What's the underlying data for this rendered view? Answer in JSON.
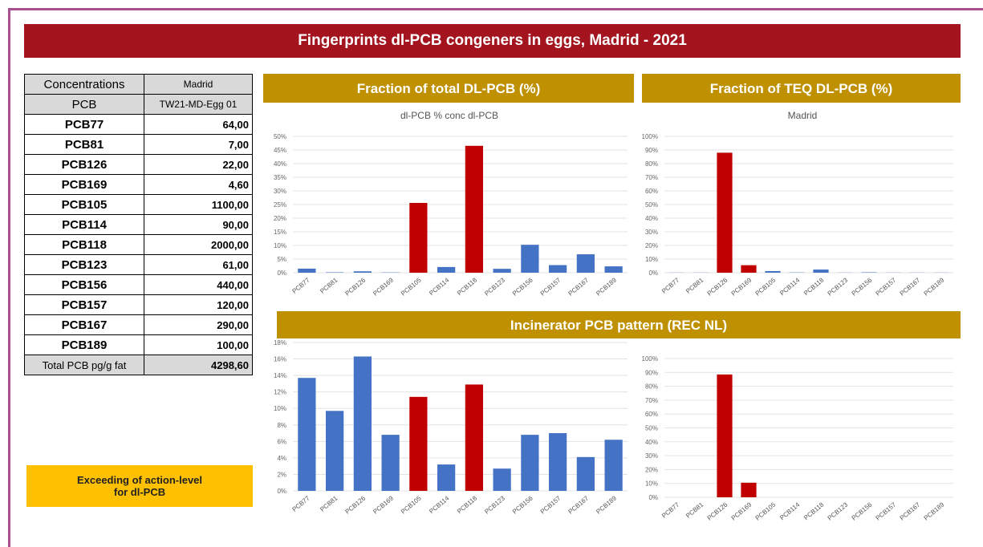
{
  "title": "Fingerprints dl-PCB congeners in eggs, Madrid - 2021",
  "table": {
    "header": [
      [
        "Concentrations",
        "Madrid"
      ],
      [
        "PCB",
        "TW21-MD-Egg 01"
      ]
    ],
    "rows": [
      [
        "PCB77",
        "64,00"
      ],
      [
        "PCB81",
        "7,00"
      ],
      [
        "PCB126",
        "22,00"
      ],
      [
        "PCB169",
        "4,60"
      ],
      [
        "PCB105",
        "1100,00"
      ],
      [
        "PCB114",
        "90,00"
      ],
      [
        "PCB118",
        "2000,00"
      ],
      [
        "PCB123",
        "61,00"
      ],
      [
        "PCB156",
        "440,00"
      ],
      [
        "PCB157",
        "120,00"
      ],
      [
        "PCB167",
        "290,00"
      ],
      [
        "PCB189",
        "100,00"
      ]
    ],
    "footer": [
      "Total PCB pg/g fat",
      "4298,60"
    ]
  },
  "note": "Exceeding of action-level for dl-PCB",
  "chart_data": [
    {
      "type": "bar",
      "title": "Fraction of total DL-PCB (%)",
      "subtitle": "dl-PCB % conc dl-PCB",
      "categories": [
        "PCB77",
        "PCB81",
        "PCB126",
        "PCB169",
        "PCB105",
        "PCB114",
        "PCB118",
        "PCB123",
        "PCB156",
        "PCB157",
        "PCB167",
        "PCB189"
      ],
      "values": [
        1.49,
        0.16,
        0.51,
        0.11,
        25.59,
        2.09,
        46.53,
        1.42,
        10.24,
        2.79,
        6.75,
        2.33
      ],
      "colors": [
        "#4472c4",
        "#4472c4",
        "#4472c4",
        "#4472c4",
        "#c00000",
        "#4472c4",
        "#c00000",
        "#4472c4",
        "#4472c4",
        "#4472c4",
        "#4472c4",
        "#4472c4"
      ],
      "ylim": [
        0,
        50
      ],
      "yticks": [
        {
          "value": 0,
          "label": "0%"
        },
        {
          "value": 5,
          "label": "5%"
        },
        {
          "value": 10,
          "label": "10%"
        },
        {
          "value": 15,
          "label": "15%"
        },
        {
          "value": 20,
          "label": "20%"
        },
        {
          "value": 25,
          "label": "25%"
        },
        {
          "value": 30,
          "label": "30%"
        },
        {
          "value": 35,
          "label": "35%"
        },
        {
          "value": 40,
          "label": "40%"
        },
        {
          "value": 45,
          "label": "45%"
        },
        {
          "value": 50,
          "label": "50%"
        }
      ],
      "grid": true
    },
    {
      "type": "bar",
      "title": "Fraction of TEQ DL-PCB (%)",
      "subtitle": "Madrid",
      "categories": [
        "PCB77",
        "PCB81",
        "PCB126",
        "PCB169",
        "PCB105",
        "PCB114",
        "PCB118",
        "PCB123",
        "PCB156",
        "PCB157",
        "PCB167",
        "PCB189"
      ],
      "values": [
        0.1,
        0.1,
        88,
        5.5,
        1.2,
        0.2,
        2.3,
        0.1,
        0.3,
        0.1,
        0.1,
        0.1
      ],
      "colors": [
        "#4472c4",
        "#4472c4",
        "#c00000",
        "#c00000",
        "#4472c4",
        "#4472c4",
        "#4472c4",
        "#4472c4",
        "#4472c4",
        "#4472c4",
        "#4472c4",
        "#4472c4"
      ],
      "ylim": [
        0,
        100
      ],
      "yticks": [
        {
          "value": 0,
          "label": "0%"
        },
        {
          "value": 10,
          "label": "10%"
        },
        {
          "value": 20,
          "label": "20%"
        },
        {
          "value": 30,
          "label": "30%"
        },
        {
          "value": 40,
          "label": "40%"
        },
        {
          "value": 50,
          "label": "50%"
        },
        {
          "value": 60,
          "label": "60%"
        },
        {
          "value": 70,
          "label": "70%"
        },
        {
          "value": 80,
          "label": "80%"
        },
        {
          "value": 90,
          "label": "90%"
        },
        {
          "value": 100,
          "label": "100%"
        }
      ],
      "grid": true
    },
    {
      "type": "bar",
      "title": "Incinerator PCB pattern (REC NL)",
      "categories": [
        "PCB77",
        "PCB81",
        "PCB126",
        "PCB169",
        "PCB105",
        "PCB114",
        "PCB118",
        "PCB123",
        "PCB156",
        "PCB157",
        "PCB167",
        "PCB189"
      ],
      "values": [
        13.7,
        9.7,
        16.3,
        6.8,
        11.4,
        3.2,
        12.9,
        2.7,
        6.8,
        7.0,
        4.1,
        6.2
      ],
      "colors": [
        "#4472c4",
        "#4472c4",
        "#4472c4",
        "#4472c4",
        "#c00000",
        "#4472c4",
        "#c00000",
        "#4472c4",
        "#4472c4",
        "#4472c4",
        "#4472c4",
        "#4472c4"
      ],
      "ylim": [
        0,
        18
      ],
      "yticks": [
        {
          "value": 0,
          "label": "0%"
        },
        {
          "value": 2,
          "label": "2%"
        },
        {
          "value": 4,
          "label": "4%"
        },
        {
          "value": 6,
          "label": "6%"
        },
        {
          "value": 8,
          "label": "8%"
        },
        {
          "value": 10,
          "label": "10%"
        },
        {
          "value": 12,
          "label": "12%"
        },
        {
          "value": 14,
          "label": "14%"
        },
        {
          "value": 16,
          "label": "16%"
        },
        {
          "value": 18,
          "label": "18%"
        }
      ],
      "grid": true
    },
    {
      "type": "bar",
      "categories": [
        "PCB77",
        "PCB81",
        "PCB126",
        "PCB169",
        "PCB105",
        "PCB114",
        "PCB118",
        "PCB123",
        "PCB156",
        "PCB157",
        "PCB167",
        "PCB189"
      ],
      "values": [
        0,
        0,
        88.5,
        10.5,
        0,
        0,
        0,
        0,
        0,
        0,
        0,
        0
      ],
      "colors": [
        "#4472c4",
        "#4472c4",
        "#c00000",
        "#c00000",
        "#4472c4",
        "#4472c4",
        "#4472c4",
        "#4472c4",
        "#4472c4",
        "#4472c4",
        "#4472c4",
        "#4472c4"
      ],
      "ylim": [
        0,
        100
      ],
      "yticks": [
        {
          "value": 0,
          "label": "0%"
        },
        {
          "value": 10,
          "label": "10%"
        },
        {
          "value": 20,
          "label": "20%"
        },
        {
          "value": 30,
          "label": "30%"
        },
        {
          "value": 40,
          "label": "40%"
        },
        {
          "value": 50,
          "label": "50%"
        },
        {
          "value": 60,
          "label": "60%"
        },
        {
          "value": 70,
          "label": "70%"
        },
        {
          "value": 80,
          "label": "80%"
        },
        {
          "value": 90,
          "label": "90%"
        },
        {
          "value": 100,
          "label": "100%"
        }
      ],
      "grid": true
    }
  ]
}
